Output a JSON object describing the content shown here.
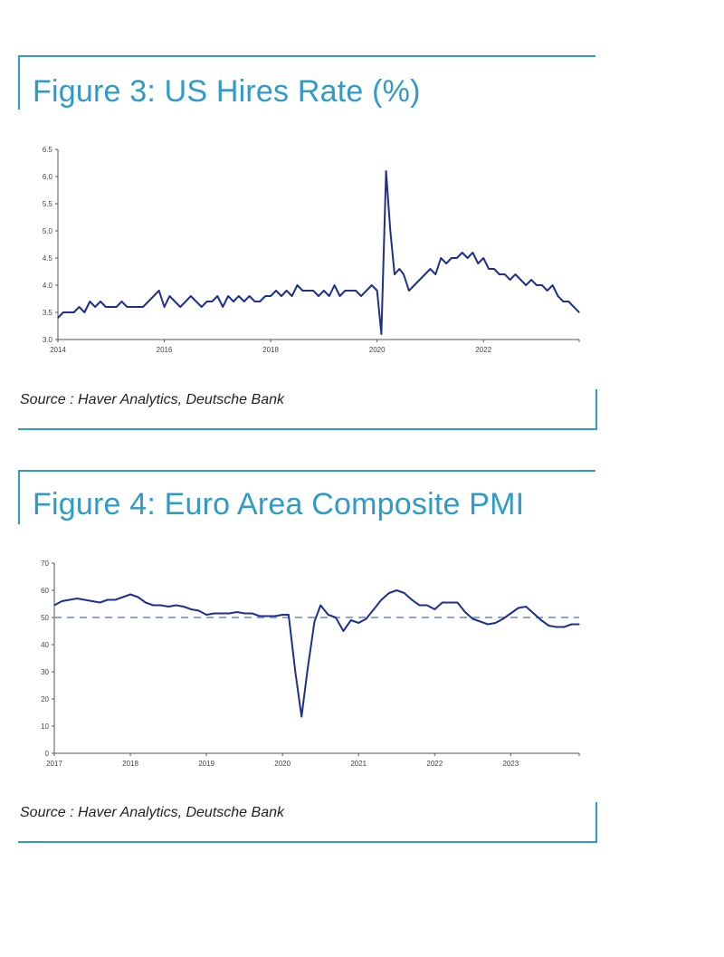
{
  "colors": {
    "accent": "#2f9bc6",
    "series": "#1f2f8f",
    "reference": "#8fa4dc"
  },
  "chart_data": [
    {
      "type": "line",
      "title": "Figure 3: US Hires Rate (%)",
      "source": "Source : Haver Analytics, Deutsche Bank",
      "xlabel": "",
      "ylabel": "",
      "xlim": [
        2014.0,
        2023.8
      ],
      "ylim": [
        3.0,
        6.5
      ],
      "yticks": [
        "3.0",
        "3.5",
        "4.0",
        "4.5",
        "5.0",
        "5.5",
        "6.0",
        "6.5"
      ],
      "ytick_values": [
        3.0,
        3.5,
        4.0,
        4.5,
        5.0,
        5.5,
        6.0,
        6.5
      ],
      "xticks": [
        "2014",
        "2016",
        "2018",
        "2020",
        "2022"
      ],
      "xtick_values": [
        2014,
        2016,
        2018,
        2020,
        2022
      ],
      "grid": false,
      "series": [
        {
          "x": [
            2014.0,
            2014.1,
            2014.2,
            2014.3,
            2014.4,
            2014.5,
            2014.6,
            2014.7,
            2014.8,
            2014.9,
            2015.0,
            2015.1,
            2015.2,
            2015.3,
            2015.4,
            2015.5,
            2015.6,
            2015.7,
            2015.8,
            2015.9,
            2016.0,
            2016.1,
            2016.2,
            2016.3,
            2016.4,
            2016.5,
            2016.6,
            2016.7,
            2016.8,
            2016.9,
            2017.0,
            2017.1,
            2017.2,
            2017.3,
            2017.4,
            2017.5,
            2017.6,
            2017.7,
            2017.8,
            2017.9,
            2018.0,
            2018.1,
            2018.2,
            2018.3,
            2018.4,
            2018.5,
            2018.6,
            2018.7,
            2018.8,
            2018.9,
            2019.0,
            2019.1,
            2019.2,
            2019.3,
            2019.4,
            2019.5,
            2019.6,
            2019.7,
            2019.8,
            2019.9,
            2020.0,
            2020.08,
            2020.17,
            2020.25,
            2020.33,
            2020.42,
            2020.5,
            2020.6,
            2020.7,
            2020.8,
            2020.9,
            2021.0,
            2021.1,
            2021.2,
            2021.3,
            2021.4,
            2021.5,
            2021.6,
            2021.7,
            2021.8,
            2021.9,
            2022.0,
            2022.1,
            2022.2,
            2022.3,
            2022.4,
            2022.5,
            2022.6,
            2022.7,
            2022.8,
            2022.9,
            2023.0,
            2023.1,
            2023.2,
            2023.3,
            2023.4,
            2023.5,
            2023.6,
            2023.7,
            2023.8
          ],
          "y": [
            3.4,
            3.5,
            3.5,
            3.5,
            3.6,
            3.5,
            3.7,
            3.6,
            3.7,
            3.6,
            3.6,
            3.6,
            3.7,
            3.6,
            3.6,
            3.6,
            3.6,
            3.7,
            3.8,
            3.9,
            3.6,
            3.8,
            3.7,
            3.6,
            3.7,
            3.8,
            3.7,
            3.6,
            3.7,
            3.7,
            3.8,
            3.6,
            3.8,
            3.7,
            3.8,
            3.7,
            3.8,
            3.7,
            3.7,
            3.8,
            3.8,
            3.9,
            3.8,
            3.9,
            3.8,
            4.0,
            3.9,
            3.9,
            3.9,
            3.8,
            3.9,
            3.8,
            4.0,
            3.8,
            3.9,
            3.9,
            3.9,
            3.8,
            3.9,
            4.0,
            3.9,
            3.1,
            6.1,
            5.0,
            4.2,
            4.3,
            4.2,
            3.9,
            4.0,
            4.1,
            4.2,
            4.3,
            4.2,
            4.5,
            4.4,
            4.5,
            4.5,
            4.6,
            4.5,
            4.6,
            4.4,
            4.5,
            4.3,
            4.3,
            4.2,
            4.2,
            4.1,
            4.2,
            4.1,
            4.0,
            4.1,
            4.0,
            4.0,
            3.9,
            4.0,
            3.8,
            3.7,
            3.7,
            3.6,
            3.5
          ]
        }
      ]
    },
    {
      "type": "line",
      "title": "Figure 4: Euro Area Composite PMI",
      "source": "Source : Haver Analytics, Deutsche Bank",
      "xlabel": "",
      "ylabel": "",
      "xlim": [
        2017.0,
        2023.9
      ],
      "ylim": [
        0,
        70
      ],
      "yticks": [
        "0",
        "10",
        "20",
        "30",
        "40",
        "50",
        "60",
        "70"
      ],
      "ytick_values": [
        0,
        10,
        20,
        30,
        40,
        50,
        60,
        70
      ],
      "xticks": [
        "2017",
        "2018",
        "2019",
        "2020",
        "2021",
        "2022",
        "2023"
      ],
      "xtick_values": [
        2017,
        2018,
        2019,
        2020,
        2021,
        2022,
        2023
      ],
      "grid": false,
      "reference_line": {
        "y": 50,
        "style": "dashed"
      },
      "series": [
        {
          "x": [
            2017.0,
            2017.1,
            2017.2,
            2017.3,
            2017.4,
            2017.5,
            2017.6,
            2017.7,
            2017.8,
            2017.9,
            2018.0,
            2018.1,
            2018.2,
            2018.3,
            2018.4,
            2018.5,
            2018.6,
            2018.7,
            2018.8,
            2018.9,
            2019.0,
            2019.1,
            2019.2,
            2019.3,
            2019.4,
            2019.5,
            2019.6,
            2019.7,
            2019.8,
            2019.9,
            2020.0,
            2020.08,
            2020.17,
            2020.25,
            2020.33,
            2020.42,
            2020.5,
            2020.6,
            2020.7,
            2020.8,
            2020.9,
            2021.0,
            2021.1,
            2021.2,
            2021.3,
            2021.4,
            2021.5,
            2021.6,
            2021.7,
            2021.8,
            2021.9,
            2022.0,
            2022.1,
            2022.2,
            2022.3,
            2022.4,
            2022.5,
            2022.6,
            2022.7,
            2022.8,
            2022.9,
            2023.0,
            2023.1,
            2023.2,
            2023.3,
            2023.4,
            2023.5,
            2023.6,
            2023.7,
            2023.8,
            2023.9
          ],
          "y": [
            54.5,
            56.0,
            56.5,
            57.0,
            56.5,
            56.0,
            55.5,
            56.5,
            56.5,
            57.5,
            58.5,
            57.5,
            55.5,
            54.5,
            54.5,
            54.0,
            54.5,
            54.0,
            53.0,
            52.5,
            51.0,
            51.5,
            51.5,
            51.5,
            52.0,
            51.5,
            51.5,
            50.5,
            50.5,
            50.5,
            51.0,
            51.0,
            29.5,
            13.5,
            31.0,
            48.5,
            54.5,
            51.0,
            50.0,
            45.0,
            49.0,
            48.0,
            49.5,
            53.0,
            56.5,
            59.0,
            60.0,
            59.0,
            56.5,
            54.5,
            54.5,
            53.0,
            55.5,
            55.5,
            55.5,
            52.0,
            49.5,
            48.5,
            47.5,
            48.0,
            49.5,
            51.5,
            53.5,
            54.0,
            51.5,
            49.0,
            47.0,
            46.5,
            46.5,
            47.5,
            47.5
          ]
        }
      ]
    }
  ]
}
